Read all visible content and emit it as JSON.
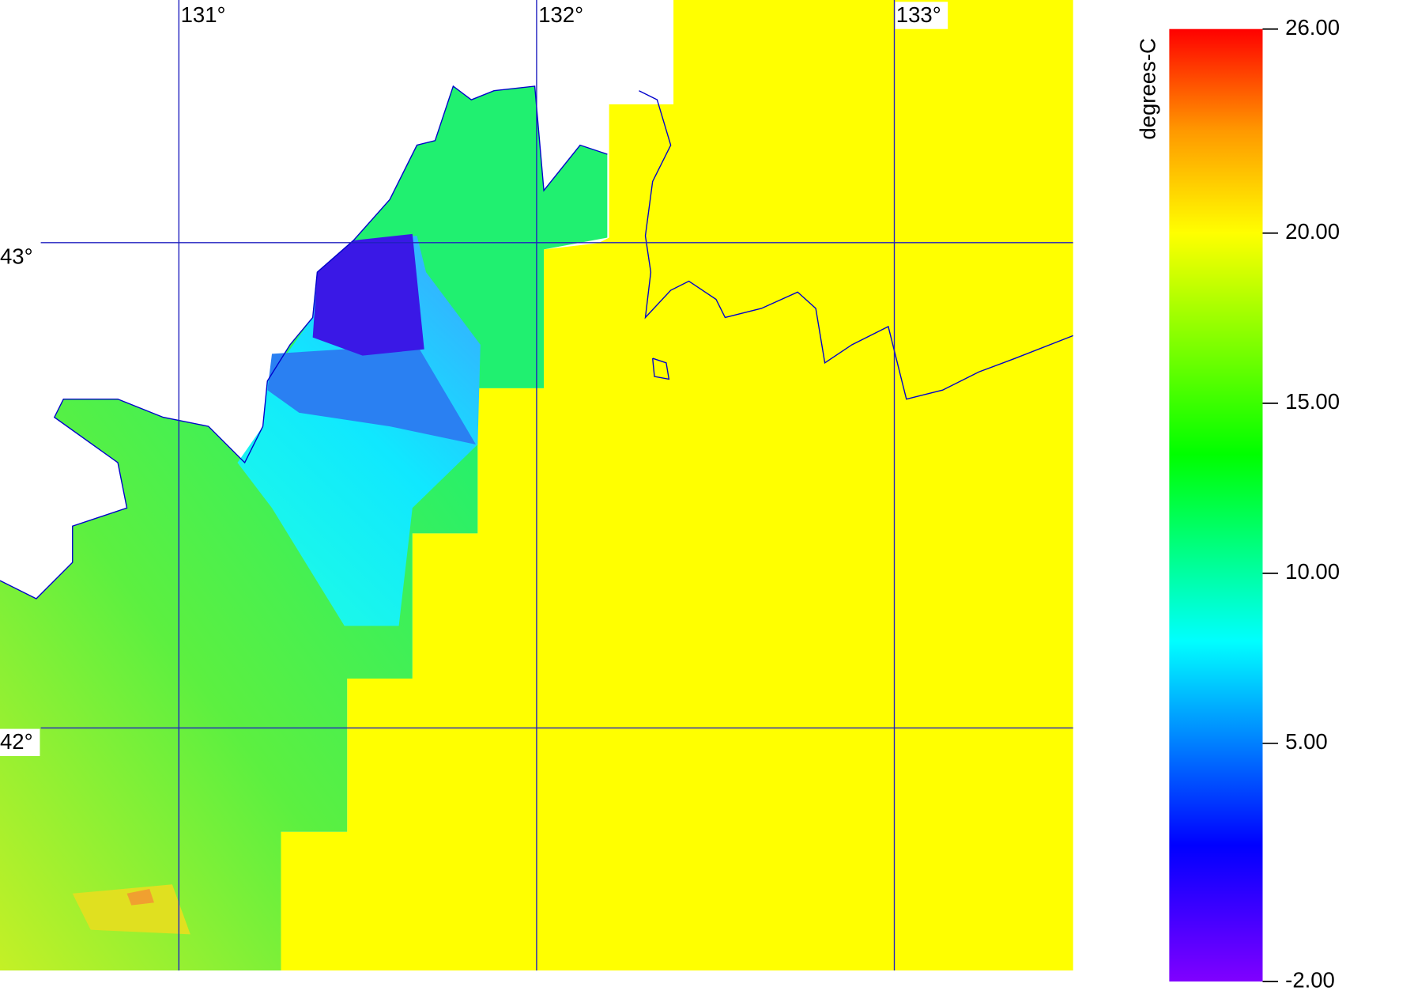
{
  "chart_data": {
    "type": "map",
    "xlim": [
      130.5,
      133.5
    ],
    "ylim": [
      41.5,
      43.5
    ],
    "xticks": [
      {
        "value": 131,
        "label": "131°"
      },
      {
        "value": 132,
        "label": "132°"
      },
      {
        "value": 133,
        "label": "133°"
      }
    ],
    "yticks": [
      {
        "value": 43,
        "label": "43°"
      },
      {
        "value": 42,
        "label": "42°"
      }
    ],
    "colorbar": {
      "label": "degrees-C",
      "lim": [
        -2,
        26
      ],
      "ticks": [
        {
          "value": 26,
          "label": "26.00"
        },
        {
          "value": 20,
          "label": "20.00"
        },
        {
          "value": 15,
          "label": "15.00"
        },
        {
          "value": 10,
          "label": "10.00"
        },
        {
          "value": 5,
          "label": "5.00"
        },
        {
          "value": -2,
          "label": "-2.00"
        }
      ],
      "colormap": [
        {
          "value": -2,
          "color": "#8000ff"
        },
        {
          "value": 2,
          "color": "#0000ff"
        },
        {
          "value": 8,
          "color": "#00ffff"
        },
        {
          "value": 13.5,
          "color": "#00ff00"
        },
        {
          "value": 20,
          "color": "#ffff00"
        },
        {
          "value": 23,
          "color": "#ff9900"
        },
        {
          "value": 26,
          "color": "#ff0000"
        }
      ]
    },
    "grid_color": "#2020c0"
  }
}
